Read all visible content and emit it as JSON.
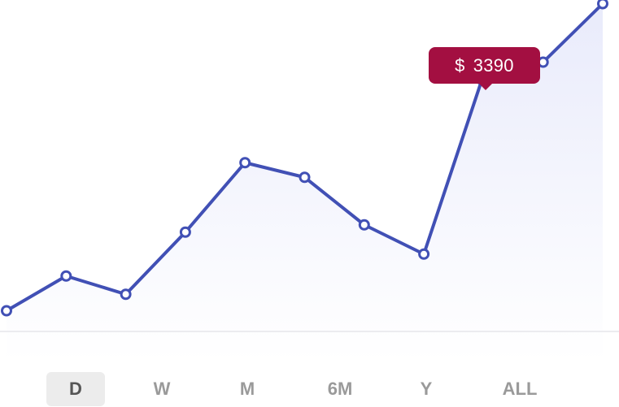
{
  "chart_data": {
    "type": "area",
    "x": [
      1,
      2,
      3,
      4,
      5,
      6,
      7,
      8,
      9,
      10,
      11
    ],
    "values": [
      2100,
      2290,
      2190,
      2530,
      2910,
      2830,
      2570,
      2410,
      3390,
      3460,
      3780
    ],
    "ylim": [
      1800,
      3800
    ],
    "highlight_index": 8,
    "grid": false,
    "legend": "none",
    "title": "",
    "xlabel": "",
    "ylabel": ""
  },
  "tooltip": {
    "currency": "$",
    "value": "3390"
  },
  "range_tabs": [
    {
      "label": "D",
      "active": true
    },
    {
      "label": "W",
      "active": false
    },
    {
      "label": "M",
      "active": false
    },
    {
      "label": "6M",
      "active": false
    },
    {
      "label": "Y",
      "active": false
    },
    {
      "label": "ALL",
      "active": false
    }
  ],
  "colors": {
    "line": "#4150b5",
    "area_top": "#e9ebfb",
    "area_bottom": "#ffffff",
    "highlight": "#a30f41",
    "baseline": "#e6e6ec"
  }
}
